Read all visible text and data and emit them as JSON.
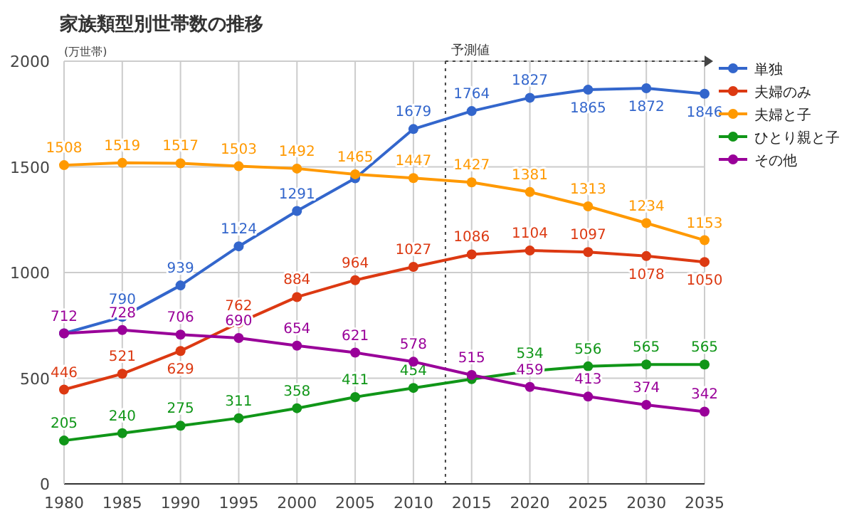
{
  "chart_data": {
    "type": "line",
    "title": "家族類型別世帯数の推移",
    "ylabel": "(万世帯)",
    "x": [
      1980,
      1985,
      1990,
      1995,
      2000,
      2005,
      2010,
      2015,
      2020,
      2025,
      2030,
      2035
    ],
    "series": [
      {
        "name": "単独",
        "color": "#3366cc",
        "values": [
          712,
          790,
          939,
          1124,
          1291,
          1446,
          1679,
          1764,
          1827,
          1865,
          1872,
          1846
        ],
        "value_labels": [
          null,
          "790",
          "939",
          "1124",
          "1291",
          null,
          "1679",
          "1764",
          "1827",
          "1865",
          "1872",
          "1846"
        ]
      },
      {
        "name": "夫婦のみ",
        "color": "#dc3912",
        "values": [
          446,
          521,
          629,
          762,
          884,
          964,
          1027,
          1086,
          1104,
          1097,
          1078,
          1050
        ],
        "value_labels": [
          "446",
          "521",
          "629",
          "762",
          "884",
          "964",
          "1027",
          "1086",
          "1104",
          "1097",
          "1078",
          "1050"
        ]
      },
      {
        "name": "夫婦と子",
        "color": "#ff9900",
        "values": [
          1508,
          1519,
          1517,
          1503,
          1492,
          1465,
          1447,
          1427,
          1381,
          1313,
          1234,
          1153
        ],
        "value_labels": [
          "1508",
          "1519",
          "1517",
          "1503",
          "1492",
          "1465",
          "1447",
          "1427",
          "1381",
          "1313",
          "1234",
          "1153"
        ]
      },
      {
        "name": "ひとり親と子",
        "color": "#109618",
        "values": [
          205,
          240,
          275,
          311,
          358,
          411,
          454,
          496,
          534,
          556,
          565,
          565
        ],
        "value_labels": [
          "205",
          "240",
          "275",
          "311",
          "358",
          "411",
          "454",
          null,
          "534",
          "556",
          "565",
          "565"
        ]
      },
      {
        "name": "その他",
        "color": "#990099",
        "values": [
          712,
          728,
          706,
          690,
          654,
          621,
          578,
          515,
          459,
          413,
          374,
          342
        ],
        "value_labels": [
          "712",
          "728",
          "706",
          "690",
          "654",
          "621",
          "578",
          "515",
          "459",
          "413",
          "374",
          "342"
        ]
      }
    ],
    "xlim": [
      1980,
      2035
    ],
    "xticks": [
      1980,
      1985,
      1990,
      1995,
      2000,
      2005,
      2010,
      2015,
      2020,
      2025,
      2030,
      2035
    ],
    "ylim": [
      0,
      2000
    ],
    "yticks": [
      0,
      500,
      1000,
      1500,
      2000
    ],
    "ref_lines": [
      {
        "axis": "x",
        "value": 2012.75,
        "label": "予測値",
        "line_style": "dotted"
      }
    ],
    "grid": true,
    "legend": "right",
    "marker": "circle",
    "line_style": "solid"
  }
}
